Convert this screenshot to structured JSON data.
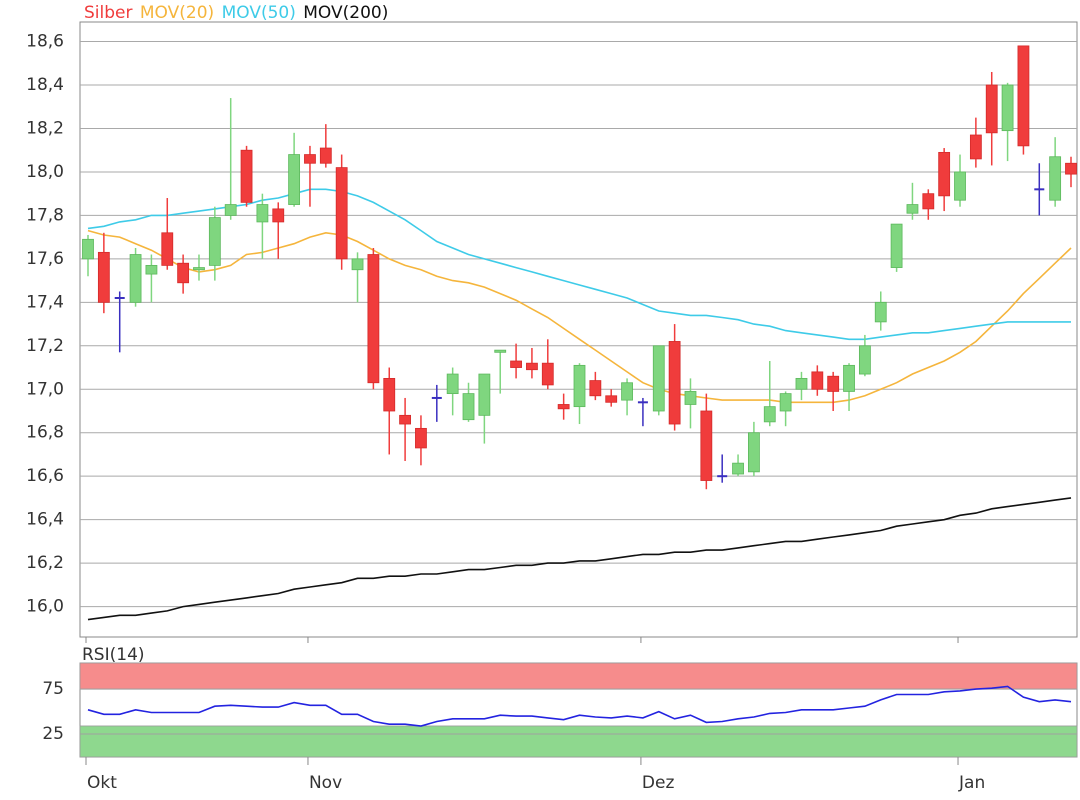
{
  "chart_data": [
    {
      "type": "candlestick",
      "name": "Silber",
      "up_color": "#7fd67f",
      "down_color": "#f03c3c",
      "doji_color": "#3a2fc0",
      "categories": [
        "Okt",
        null,
        null,
        null,
        null,
        null,
        null,
        null,
        null,
        null,
        null,
        null,
        null,
        null,
        "Nov",
        null,
        null,
        null,
        null,
        null,
        null,
        null,
        null,
        null,
        null,
        null,
        null,
        null,
        null,
        null,
        null,
        null,
        null,
        null,
        null,
        "Dez",
        null,
        null,
        null,
        null,
        null,
        null,
        null,
        null,
        null,
        null,
        null,
        null,
        null,
        null,
        null,
        null,
        null,
        null,
        null,
        "Jan",
        null,
        null,
        null,
        null,
        null,
        null,
        null
      ],
      "open": [
        17.6,
        17.63,
        17.42,
        17.4,
        17.53,
        17.72,
        17.58,
        17.55,
        17.57,
        17.8,
        18.1,
        17.77,
        17.83,
        17.85,
        18.08,
        18.11,
        18.02,
        17.55,
        17.62,
        17.05,
        16.88,
        16.82,
        16.96,
        16.98,
        16.86,
        16.88,
        17.17,
        17.13,
        17.12,
        17.12,
        16.93,
        16.92,
        17.04,
        16.97,
        16.95,
        16.94,
        16.9,
        17.22,
        16.93,
        16.9,
        16.6,
        16.61,
        16.62,
        16.85,
        16.9,
        17.0,
        17.08,
        17.06,
        16.99,
        17.07,
        17.31,
        17.56,
        17.81,
        17.9,
        18.09,
        17.87,
        18.17,
        18.4,
        18.19,
        18.58,
        17.92,
        17.87,
        18.04
      ],
      "high": [
        17.71,
        17.72,
        17.45,
        17.65,
        17.62,
        17.88,
        17.62,
        17.62,
        17.84,
        18.34,
        18.12,
        17.9,
        17.86,
        18.18,
        18.12,
        18.22,
        18.08,
        17.63,
        17.65,
        17.1,
        16.96,
        16.88,
        17.02,
        17.1,
        17.03,
        17.07,
        17.18,
        17.21,
        17.19,
        17.23,
        16.98,
        17.12,
        17.08,
        17.0,
        17.05,
        16.96,
        17.2,
        17.3,
        17.05,
        16.98,
        16.7,
        16.7,
        16.85,
        17.13,
        16.99,
        17.08,
        17.11,
        17.08,
        17.12,
        17.25,
        17.45,
        17.76,
        17.95,
        17.92,
        18.11,
        18.08,
        18.25,
        18.46,
        18.41,
        18.58,
        18.04,
        18.16,
        18.07
      ],
      "low": [
        17.52,
        17.35,
        17.17,
        17.38,
        17.4,
        17.55,
        17.44,
        17.5,
        17.5,
        17.78,
        17.84,
        17.6,
        17.6,
        17.84,
        17.84,
        18.02,
        17.55,
        17.4,
        17.0,
        16.7,
        16.67,
        16.65,
        16.85,
        16.88,
        16.85,
        16.75,
        16.98,
        17.05,
        17.05,
        17.0,
        16.86,
        16.84,
        16.95,
        16.92,
        16.88,
        16.83,
        16.88,
        16.81,
        16.82,
        16.54,
        16.57,
        16.6,
        16.6,
        16.83,
        16.83,
        16.95,
        16.97,
        16.9,
        16.9,
        17.06,
        17.27,
        17.54,
        17.78,
        17.78,
        17.82,
        17.84,
        18.02,
        18.03,
        18.05,
        18.08,
        17.8,
        17.84,
        17.93
      ],
      "close": [
        17.69,
        17.4,
        17.42,
        17.62,
        17.57,
        17.57,
        17.49,
        17.56,
        17.79,
        17.85,
        17.86,
        17.85,
        17.77,
        18.08,
        18.04,
        18.04,
        17.6,
        17.6,
        17.03,
        16.9,
        16.84,
        16.73,
        16.96,
        17.07,
        16.98,
        17.07,
        17.18,
        17.1,
        17.09,
        17.02,
        16.91,
        17.11,
        16.97,
        16.94,
        17.03,
        16.94,
        17.2,
        16.84,
        16.99,
        16.58,
        16.6,
        16.66,
        16.8,
        16.92,
        16.98,
        17.05,
        17.0,
        16.99,
        17.11,
        17.2,
        17.4,
        17.76,
        17.85,
        17.83,
        17.89,
        18.0,
        18.06,
        18.18,
        18.4,
        18.12,
        17.92,
        18.07,
        17.99
      ],
      "series": [
        {
          "name": "MOV(20)",
          "color": "#f5b53c",
          "values": [
            17.73,
            17.71,
            17.7,
            17.67,
            17.64,
            17.6,
            17.56,
            17.54,
            17.55,
            17.57,
            17.62,
            17.63,
            17.65,
            17.67,
            17.7,
            17.72,
            17.71,
            17.68,
            17.64,
            17.6,
            17.57,
            17.55,
            17.52,
            17.5,
            17.49,
            17.47,
            17.44,
            17.41,
            17.37,
            17.33,
            17.28,
            17.23,
            17.18,
            17.13,
            17.08,
            17.03,
            17.0,
            16.98,
            16.97,
            16.96,
            16.95,
            16.95,
            16.95,
            16.95,
            16.94,
            16.94,
            16.94,
            16.94,
            16.95,
            16.97,
            17.0,
            17.03,
            17.07,
            17.1,
            17.13,
            17.17,
            17.22,
            17.29,
            17.36,
            17.44,
            17.51,
            17.58,
            17.65
          ]
        },
        {
          "name": "MOV(50)",
          "color": "#3ecbe8",
          "values": [
            17.74,
            17.75,
            17.77,
            17.78,
            17.8,
            17.8,
            17.81,
            17.82,
            17.83,
            17.84,
            17.85,
            17.87,
            17.88,
            17.9,
            17.92,
            17.92,
            17.91,
            17.89,
            17.86,
            17.82,
            17.78,
            17.73,
            17.68,
            17.65,
            17.62,
            17.6,
            17.58,
            17.56,
            17.54,
            17.52,
            17.5,
            17.48,
            17.46,
            17.44,
            17.42,
            17.39,
            17.36,
            17.35,
            17.34,
            17.34,
            17.33,
            17.32,
            17.3,
            17.29,
            17.27,
            17.26,
            17.25,
            17.24,
            17.23,
            17.23,
            17.24,
            17.25,
            17.26,
            17.26,
            17.27,
            17.28,
            17.29,
            17.3,
            17.31,
            17.31,
            17.31,
            17.31,
            17.31
          ]
        },
        {
          "name": "MOV(200)",
          "color": "#111111",
          "values": [
            15.94,
            15.95,
            15.96,
            15.96,
            15.97,
            15.98,
            16.0,
            16.01,
            16.02,
            16.03,
            16.04,
            16.05,
            16.06,
            16.08,
            16.09,
            16.1,
            16.11,
            16.13,
            16.13,
            16.14,
            16.14,
            16.15,
            16.15,
            16.16,
            16.17,
            16.17,
            16.18,
            16.19,
            16.19,
            16.2,
            16.2,
            16.21,
            16.21,
            16.22,
            16.23,
            16.24,
            16.24,
            16.25,
            16.25,
            16.26,
            16.26,
            16.27,
            16.28,
            16.29,
            16.3,
            16.3,
            16.31,
            16.32,
            16.33,
            16.34,
            16.35,
            16.37,
            16.38,
            16.39,
            16.4,
            16.42,
            16.43,
            16.45,
            16.46,
            16.47,
            16.48,
            16.49,
            16.5
          ]
        }
      ],
      "ylim": [
        15.86,
        18.69
      ],
      "yticks": [
        {
          "value": 16.0,
          "label": "16,0"
        },
        {
          "value": 16.2,
          "label": "16,2"
        },
        {
          "value": 16.4,
          "label": "16,4"
        },
        {
          "value": 16.6,
          "label": "16,6"
        },
        {
          "value": 16.8,
          "label": "16,8"
        },
        {
          "value": 17.0,
          "label": "17,0"
        },
        {
          "value": 17.2,
          "label": "17,2"
        },
        {
          "value": 17.4,
          "label": "17,4"
        },
        {
          "value": 17.6,
          "label": "17,6"
        },
        {
          "value": 17.8,
          "label": "17,8"
        },
        {
          "value": 18.0,
          "label": "18,0"
        },
        {
          "value": 18.2,
          "label": "18,2"
        },
        {
          "value": 18.4,
          "label": "18,4"
        },
        {
          "value": 18.6,
          "label": "18,6"
        }
      ],
      "grid": true
    },
    {
      "type": "line",
      "title": "RSI(14)",
      "color": "#2323e0",
      "values": [
        52,
        47,
        47,
        52,
        49,
        49,
        49,
        49,
        56,
        57,
        56,
        55,
        55,
        60,
        57,
        57,
        47,
        47,
        39,
        36,
        36,
        34,
        39,
        42,
        42,
        42,
        46,
        45,
        45,
        43,
        41,
        46,
        44,
        43,
        45,
        43,
        50,
        42,
        46,
        38,
        39,
        42,
        44,
        48,
        49,
        52,
        52,
        52,
        54,
        56,
        63,
        69,
        69,
        69,
        72,
        73,
        75,
        76,
        78,
        66,
        61,
        63,
        61
      ],
      "ylim": [
        -0.5,
        104
      ],
      "yticks": [
        25,
        75
      ],
      "grid": true,
      "bands": [
        {
          "from": 75,
          "to": 104,
          "color": "#f68c8c"
        },
        {
          "from": -0.5,
          "to": 34,
          "color": "#8ed88e"
        }
      ]
    }
  ]
}
